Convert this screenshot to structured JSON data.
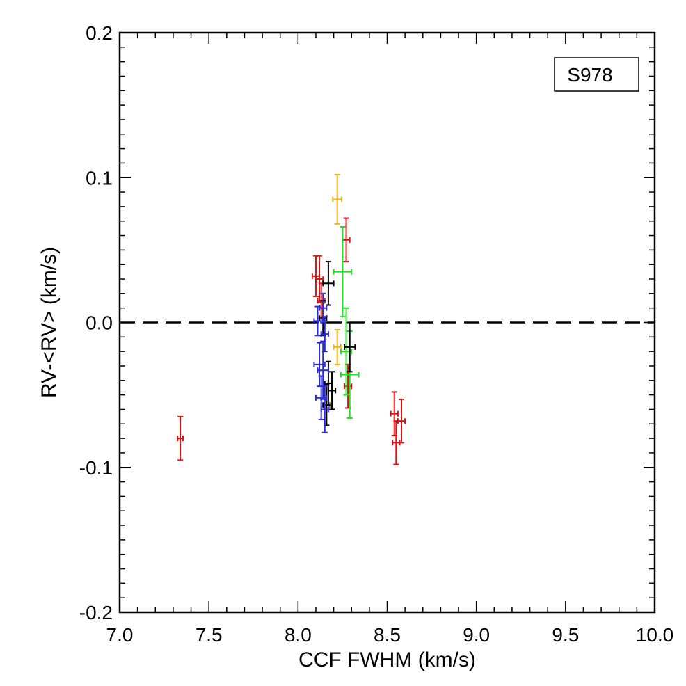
{
  "chart_data": {
    "type": "scatter",
    "title": "",
    "xlabel": "CCF FWHM (km/s)",
    "ylabel": "RV-<RV> (km/s)",
    "xlim": [
      7.0,
      10.0
    ],
    "ylim": [
      -0.2,
      0.2
    ],
    "x_ticks": [
      7.0,
      7.5,
      8.0,
      8.5,
      9.0,
      9.5,
      10.0
    ],
    "x_tick_labels": [
      "7.0",
      "7.5",
      "8.0",
      "8.5",
      "9.0",
      "9.5",
      "10.0"
    ],
    "y_ticks": [
      -0.2,
      -0.1,
      0.0,
      0.1,
      0.2
    ],
    "y_tick_labels": [
      "-0.2",
      "-0.1",
      "0.0",
      "0.1",
      "0.2"
    ],
    "grid": false,
    "reference_line": {
      "y": 0.0,
      "style": "dashed",
      "color": "#000000"
    },
    "legend_box": {
      "text": "S978",
      "placement": "top-right"
    },
    "series": [
      {
        "name": "red",
        "color": "#dd1111",
        "points": [
          {
            "x": 7.34,
            "y": -0.08,
            "xerr": 0.015,
            "yerr": 0.015
          },
          {
            "x": 8.1,
            "y": 0.032,
            "xerr": 0.02,
            "yerr": 0.014
          },
          {
            "x": 8.12,
            "y": 0.03,
            "xerr": 0.02,
            "yerr": 0.016
          },
          {
            "x": 8.13,
            "y": 0.015,
            "xerr": 0.02,
            "yerr": 0.012
          },
          {
            "x": 8.27,
            "y": 0.057,
            "xerr": 0.02,
            "yerr": 0.015
          },
          {
            "x": 8.28,
            "y": -0.044,
            "xerr": 0.02,
            "yerr": 0.015
          },
          {
            "x": 8.54,
            "y": -0.063,
            "xerr": 0.02,
            "yerr": 0.015
          },
          {
            "x": 8.55,
            "y": -0.083,
            "xerr": 0.02,
            "yerr": 0.015
          },
          {
            "x": 8.58,
            "y": -0.068,
            "xerr": 0.02,
            "yerr": 0.015
          }
        ]
      },
      {
        "name": "orange",
        "color": "#f2b21e",
        "points": [
          {
            "x": 8.22,
            "y": 0.085,
            "xerr": 0.025,
            "yerr": 0.017
          },
          {
            "x": 8.22,
            "y": -0.017,
            "xerr": 0.02,
            "yerr": 0.012
          }
        ]
      },
      {
        "name": "green",
        "color": "#22dd22",
        "points": [
          {
            "x": 8.25,
            "y": 0.035,
            "xerr": 0.05,
            "yerr": 0.031
          },
          {
            "x": 8.27,
            "y": -0.02,
            "xerr": 0.03,
            "yerr": 0.03
          },
          {
            "x": 8.29,
            "y": -0.036,
            "xerr": 0.05,
            "yerr": 0.03
          }
        ]
      },
      {
        "name": "black",
        "color": "#000000",
        "points": [
          {
            "x": 8.17,
            "y": 0.027,
            "xerr": 0.03,
            "yerr": 0.015
          },
          {
            "x": 8.14,
            "y": 0.003,
            "xerr": 0.02,
            "yerr": 0.012
          },
          {
            "x": 8.29,
            "y": -0.017,
            "xerr": 0.03,
            "yerr": 0.017
          },
          {
            "x": 8.17,
            "y": -0.042,
            "xerr": 0.02,
            "yerr": 0.015
          },
          {
            "x": 8.19,
            "y": -0.047,
            "xerr": 0.02,
            "yerr": 0.013
          },
          {
            "x": 8.16,
            "y": -0.057,
            "xerr": 0.02,
            "yerr": 0.014
          }
        ]
      },
      {
        "name": "blue",
        "color": "#2a2add",
        "points": [
          {
            "x": 8.14,
            "y": 0.01,
            "xerr": 0.02,
            "yerr": 0.01
          },
          {
            "x": 8.11,
            "y": 0.001,
            "xerr": 0.02,
            "yerr": 0.01
          },
          {
            "x": 8.15,
            "y": -0.008,
            "xerr": 0.02,
            "yerr": 0.012
          },
          {
            "x": 8.12,
            "y": -0.029,
            "xerr": 0.03,
            "yerr": 0.015
          },
          {
            "x": 8.14,
            "y": -0.033,
            "xerr": 0.03,
            "yerr": 0.02
          },
          {
            "x": 8.13,
            "y": -0.052,
            "xerr": 0.03,
            "yerr": 0.015
          },
          {
            "x": 8.15,
            "y": -0.06,
            "xerr": 0.02,
            "yerr": 0.016
          }
        ]
      }
    ]
  }
}
